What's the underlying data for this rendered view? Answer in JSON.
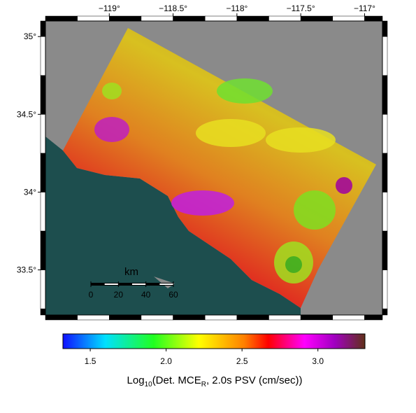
{
  "map": {
    "lonlim": [
      -119.5,
      -116.86
    ],
    "latlim": [
      33.21,
      35.1
    ],
    "lon_ticks": [
      {
        "value": -119,
        "label": "−119°"
      },
      {
        "value": -118.5,
        "label": "−118.5°"
      },
      {
        "value": -118,
        "label": "−118°"
      },
      {
        "value": -117.5,
        "label": "−117.5°"
      },
      {
        "value": -117,
        "label": "−117°"
      }
    ],
    "lat_ticks": [
      {
        "value": 35,
        "label": "35°"
      },
      {
        "value": 34.5,
        "label": "34.5°"
      },
      {
        "value": 34,
        "label": "34°"
      },
      {
        "value": 33.5,
        "label": "33.5°"
      }
    ]
  },
  "scale_bar": {
    "unit": "km",
    "ticks": [
      0,
      20,
      40,
      60
    ]
  },
  "colorbar": {
    "range": [
      1.32,
      3.31
    ],
    "ticks": [
      1.5,
      {
        "value": 2,
        "label": "2.0"
      },
      2.5,
      {
        "value": 3,
        "label": "3.0"
      }
    ],
    "label": {
      "prefix": "Log",
      "sub1": "10",
      "middle": "(Det. MCE",
      "sub2": "R",
      "suffix": ", 2.0s PSV (cm/sec))"
    }
  }
}
